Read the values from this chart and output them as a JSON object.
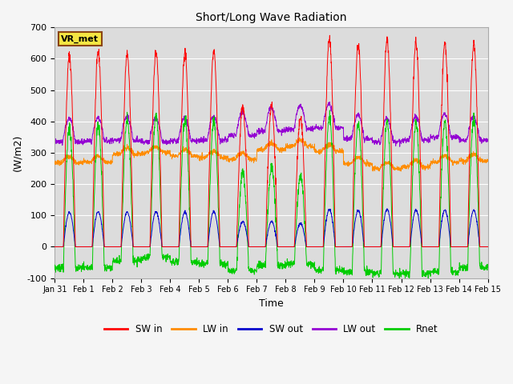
{
  "title": "Short/Long Wave Radiation",
  "xlabel": "Time",
  "ylabel": "(W/m2)",
  "ylim": [
    -100,
    700
  ],
  "yticks": [
    -100,
    0,
    100,
    200,
    300,
    400,
    500,
    600,
    700
  ],
  "xtick_labels": [
    "Jan 31",
    "Feb 1",
    "Feb 2",
    "Feb 3",
    "Feb 4",
    "Feb 5",
    "Feb 6",
    "Feb 7",
    "Feb 8",
    "Feb 9",
    "Feb 10",
    "Feb 11",
    "Feb 12",
    "Feb 13",
    "Feb 14",
    "Feb 15"
  ],
  "bg_color": "#dcdcdc",
  "fig_bg_color": "#f5f5f5",
  "annotation_text": "VR_met",
  "annotation_bg": "#f5e642",
  "annotation_border": "#8B4513",
  "series_colors": {
    "SW_in": "#ff0000",
    "LW_in": "#ff8c00",
    "SW_out": "#0000cc",
    "LW_out": "#9400d3",
    "Rnet": "#00cc00"
  },
  "legend_labels": [
    "SW in",
    "LW in",
    "SW out",
    "LW out",
    "Rnet"
  ],
  "n_days": 15,
  "points_per_day": 144
}
